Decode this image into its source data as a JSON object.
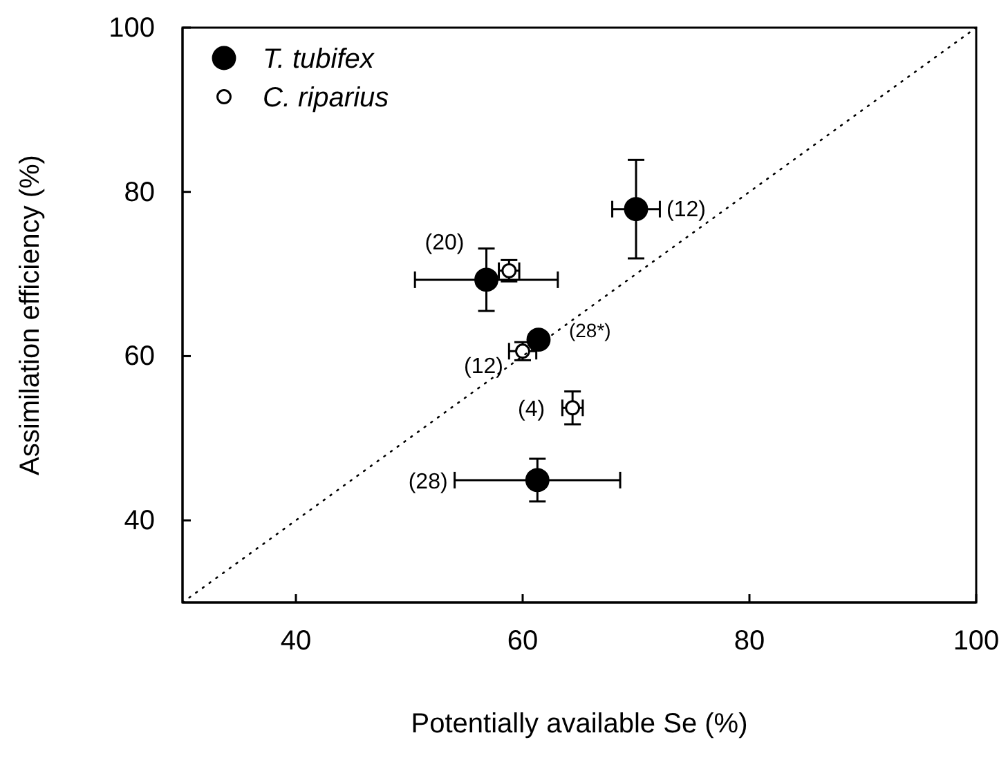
{
  "chart_data": {
    "type": "scatter",
    "xlabel": "Potentially available Se (%)",
    "ylabel": "Assimilation efficiency (%)",
    "xlim": [
      30,
      100
    ],
    "ylim": [
      30,
      100
    ],
    "xticks": [
      40,
      60,
      80,
      100
    ],
    "yticks": [
      40,
      60,
      80,
      100
    ],
    "grid": false,
    "legend": "top left",
    "marker": "circle",
    "series": [
      {
        "name": "T. tubifex",
        "color": "#000000",
        "x": [
          70.0,
          56.8,
          61.4,
          61.3
        ],
        "values": [
          77.9,
          69.3,
          62.0,
          44.9
        ],
        "errors": [
          6,
          3.8,
          null,
          2.6
        ],
        "xerrors": [
          2.1,
          6.3,
          null,
          7.3
        ]
      },
      {
        "name": "C. riparius",
        "color": "#ffffff",
        "x": [
          58.8,
          60.0,
          64.4
        ],
        "values": [
          70.4,
          60.6,
          53.7
        ],
        "errors": [
          1.3,
          1.1,
          2
        ],
        "xerrors": [
          0.9,
          1.2,
          0.9
        ]
      },
      {
        "type": "line",
        "color": "#000000",
        "line_style": "dotted",
        "marker": "none",
        "x": [
          30,
          100
        ],
        "values": [
          30,
          100
        ]
      }
    ],
    "annotations": [
      {
        "text": "(12)",
        "x": 70.0,
        "y": 77.9
      },
      {
        "text": "(20)",
        "x": 56.8,
        "y": 69.3
      },
      {
        "text": "(28*)",
        "x": 61.4,
        "y": 62.0
      },
      {
        "text": "(12)",
        "x": 60.0,
        "y": 60.6
      },
      {
        "text": "(4)",
        "x": 64.4,
        "y": 53.7
      },
      {
        "text": "(28)",
        "x": 54.0,
        "y": 44.9
      }
    ]
  }
}
